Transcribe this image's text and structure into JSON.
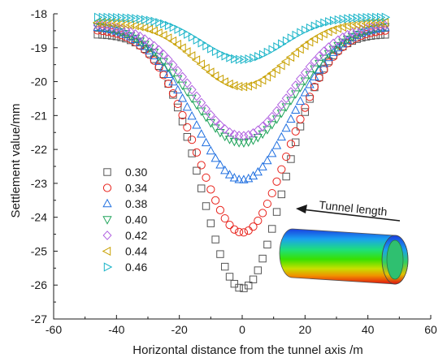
{
  "chart_data": {
    "type": "scatter",
    "title": "",
    "xlabel": "Horizontal distance from the tunnel axis /m",
    "ylabel": "Settlement value/mm",
    "xlim": [
      -60,
      60
    ],
    "ylim": [
      -27,
      -18
    ],
    "xticks": [
      -60,
      -40,
      -20,
      0,
      20,
      40,
      60
    ],
    "yticks": [
      -27,
      -26,
      -25,
      -24,
      -23,
      -22,
      -21,
      -20,
      -19,
      -18
    ],
    "grid": false,
    "legend_position": "left-middle",
    "x_range": [
      -46,
      46
    ],
    "x_step": 1.5,
    "series": [
      {
        "name": "0.30",
        "marker": "square",
        "color": "#555555",
        "edge": -18.6,
        "peak": -26.1,
        "width": 13
      },
      {
        "name": "0.34",
        "marker": "circle",
        "color": "#e8231c",
        "edge": -18.45,
        "peak": -24.45,
        "width": 14.5
      },
      {
        "name": "0.38",
        "marker": "triangle-up",
        "color": "#1f6fe0",
        "edge": -18.35,
        "peak": -22.9,
        "width": 15.5
      },
      {
        "name": "0.40",
        "marker": "triangle-down",
        "color": "#1fa35a",
        "edge": -18.3,
        "peak": -21.8,
        "width": 16.5
      },
      {
        "name": "0.42",
        "marker": "diamond",
        "color": "#b060e0",
        "edge": -18.3,
        "peak": -21.6,
        "width": 15.5
      },
      {
        "name": "0.44",
        "marker": "triangle-left",
        "color": "#c8a000",
        "edge": -18.25,
        "peak": -20.15,
        "width": 14
      },
      {
        "name": "0.46",
        "marker": "triangle-right",
        "color": "#19b4c8",
        "edge": -18.1,
        "peak": -19.35,
        "width": 13
      }
    ],
    "annotations": [
      {
        "text": "Tunnel length",
        "type": "arrow-label"
      }
    ]
  }
}
